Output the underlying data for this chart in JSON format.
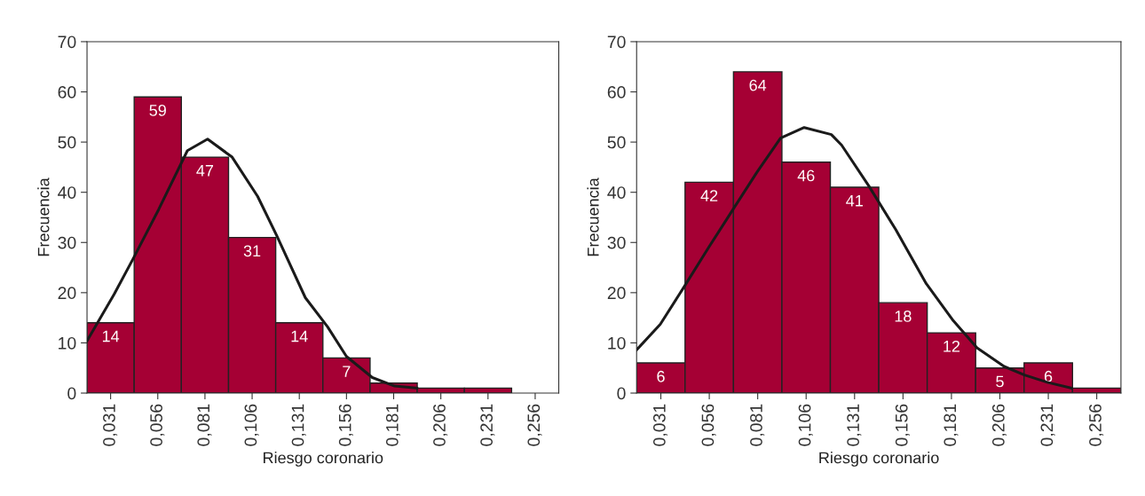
{
  "chart_data": [
    {
      "type": "histogram",
      "xlabel": "Riesgo coronario",
      "ylabel": "Frecuencia",
      "color": "#a50034",
      "bins": [
        0.0185,
        0.0435,
        0.0685,
        0.0935,
        0.1185,
        0.1435,
        0.1685,
        0.1935,
        0.2185,
        0.2435,
        0.2685
      ],
      "values": [
        14,
        59,
        47,
        31,
        14,
        7,
        2,
        1,
        1,
        0
      ],
      "value_labels": [
        "14",
        "59",
        "47",
        "31",
        "14",
        "7",
        null,
        null,
        null,
        null
      ],
      "series": [
        {
          "type": "line",
          "color": "#1a1a1a",
          "x": [
            0.0185,
            0.0329,
            0.043,
            0.0565,
            0.0717,
            0.0824,
            0.0954,
            0.1089,
            0.119,
            0.1342,
            0.146,
            0.156,
            0.1697,
            0.1815,
            0.1933
          ],
          "values": [
            10.4,
            19.7,
            26.8,
            36.6,
            48.3,
            50.6,
            47,
            39.2,
            31.4,
            19,
            13.2,
            7.3,
            3.1,
            1.4,
            1.0
          ]
        }
      ],
      "xlim": [
        0.0185,
        0.2685
      ],
      "xticks": [
        {
          "value": 0.031,
          "label": "0,031"
        },
        {
          "value": 0.056,
          "label": "0,056"
        },
        {
          "value": 0.081,
          "label": "0,081"
        },
        {
          "value": 0.106,
          "label": "0,106"
        },
        {
          "value": 0.131,
          "label": "0,131"
        },
        {
          "value": 0.156,
          "label": "0,156"
        },
        {
          "value": 0.181,
          "label": "0,181"
        },
        {
          "value": 0.206,
          "label": "0,206"
        },
        {
          "value": 0.231,
          "label": "0,231"
        },
        {
          "value": 0.256,
          "label": "0,256"
        }
      ],
      "ylim": [
        0,
        70
      ],
      "yticks": [
        0,
        10,
        20,
        30,
        40,
        50,
        60,
        70
      ],
      "grid": false,
      "legend": false
    },
    {
      "type": "histogram",
      "xlabel": "Riesgo coronario",
      "ylabel": "Frecuencia",
      "color": "#a50034",
      "bins": [
        0.0185,
        0.0435,
        0.0685,
        0.0935,
        0.1185,
        0.1435,
        0.1685,
        0.1935,
        0.2185,
        0.2435,
        0.2685
      ],
      "values": [
        6,
        42,
        64,
        46,
        41,
        18,
        12,
        5,
        6,
        1
      ],
      "value_labels": [
        "6",
        "42",
        "64",
        "46",
        "41",
        "18",
        "12",
        "5",
        "6",
        null
      ],
      "series": [
        {
          "type": "line",
          "color": "#1a1a1a",
          "x": [
            0.0185,
            0.0307,
            0.0429,
            0.056,
            0.0683,
            0.0806,
            0.0928,
            0.105,
            0.119,
            0.1243,
            0.1383,
            0.1522,
            0.168,
            0.182,
            0.1942,
            0.2082,
            0.2187,
            0.2309,
            0.243
          ],
          "values": [
            8.6,
            13.7,
            21.1,
            29.2,
            36.6,
            44,
            50.8,
            52.9,
            51.5,
            49.4,
            41.3,
            32.6,
            21.8,
            14.4,
            9.0,
            5.3,
            3.6,
            2.1,
            1.0
          ]
        }
      ],
      "xlim": [
        0.0185,
        0.2685
      ],
      "xticks": [
        {
          "value": 0.031,
          "label": "0,031"
        },
        {
          "value": 0.056,
          "label": "0,056"
        },
        {
          "value": 0.081,
          "label": "0,081"
        },
        {
          "value": 0.106,
          "label": "0,106"
        },
        {
          "value": 0.131,
          "label": "0,131"
        },
        {
          "value": 0.156,
          "label": "0,156"
        },
        {
          "value": 0.181,
          "label": "0,181"
        },
        {
          "value": 0.206,
          "label": "0,206"
        },
        {
          "value": 0.231,
          "label": "0,231"
        },
        {
          "value": 0.256,
          "label": "0,256"
        }
      ],
      "ylim": [
        0,
        70
      ],
      "yticks": [
        0,
        10,
        20,
        30,
        40,
        50,
        60,
        70
      ],
      "grid": false,
      "legend": false
    }
  ]
}
